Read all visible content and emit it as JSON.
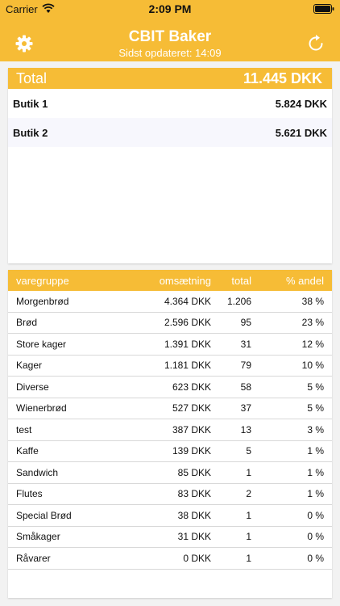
{
  "status_bar": {
    "carrier": "Carrier",
    "time": "2:09 PM"
  },
  "nav": {
    "title": "CBIT Baker",
    "subtitle": "Sidst opdateret: 14:09",
    "left_icon": "gear-icon",
    "right_icon": "refresh-icon"
  },
  "summary": {
    "total_label": "Total",
    "total_value": "11.445 DKK",
    "stores": [
      {
        "name": "Butik 1",
        "value": "5.824 DKK"
      },
      {
        "name": "Butik 2",
        "value": "5.621 DKK"
      }
    ]
  },
  "table": {
    "headers": {
      "group": "varegruppe",
      "revenue": "omsætning",
      "total": "total",
      "share": "% andel"
    },
    "rows": [
      {
        "group": "Morgenbrød",
        "revenue": "4.364 DKK",
        "total": "1.206",
        "share": "38 %"
      },
      {
        "group": "Brød",
        "revenue": "2.596 DKK",
        "total": "95",
        "share": "23 %"
      },
      {
        "group": "Store kager",
        "revenue": "1.391 DKK",
        "total": "31",
        "share": "12 %"
      },
      {
        "group": "Kager",
        "revenue": "1.181 DKK",
        "total": "79",
        "share": "10 %"
      },
      {
        "group": "Diverse",
        "revenue": "623 DKK",
        "total": "58",
        "share": "5 %"
      },
      {
        "group": "Wienerbrød",
        "revenue": "527 DKK",
        "total": "37",
        "share": "5 %"
      },
      {
        "group": "test",
        "revenue": "387 DKK",
        "total": "13",
        "share": "3 %"
      },
      {
        "group": "Kaffe",
        "revenue": "139 DKK",
        "total": "5",
        "share": "1 %"
      },
      {
        "group": "Sandwich",
        "revenue": "85 DKK",
        "total": "1",
        "share": "1 %"
      },
      {
        "group": "Flutes",
        "revenue": "83 DKK",
        "total": "2",
        "share": "1 %"
      },
      {
        "group": "Special Brød",
        "revenue": "38 DKK",
        "total": "1",
        "share": "0 %"
      },
      {
        "group": "Småkager",
        "revenue": "31 DKK",
        "total": "1",
        "share": "0 %"
      },
      {
        "group": "Råvarer",
        "revenue": "0 DKK",
        "total": "1",
        "share": "0 %"
      }
    ]
  },
  "colors": {
    "accent": "#f6bc36",
    "alt_row": "#f7f7fd"
  }
}
